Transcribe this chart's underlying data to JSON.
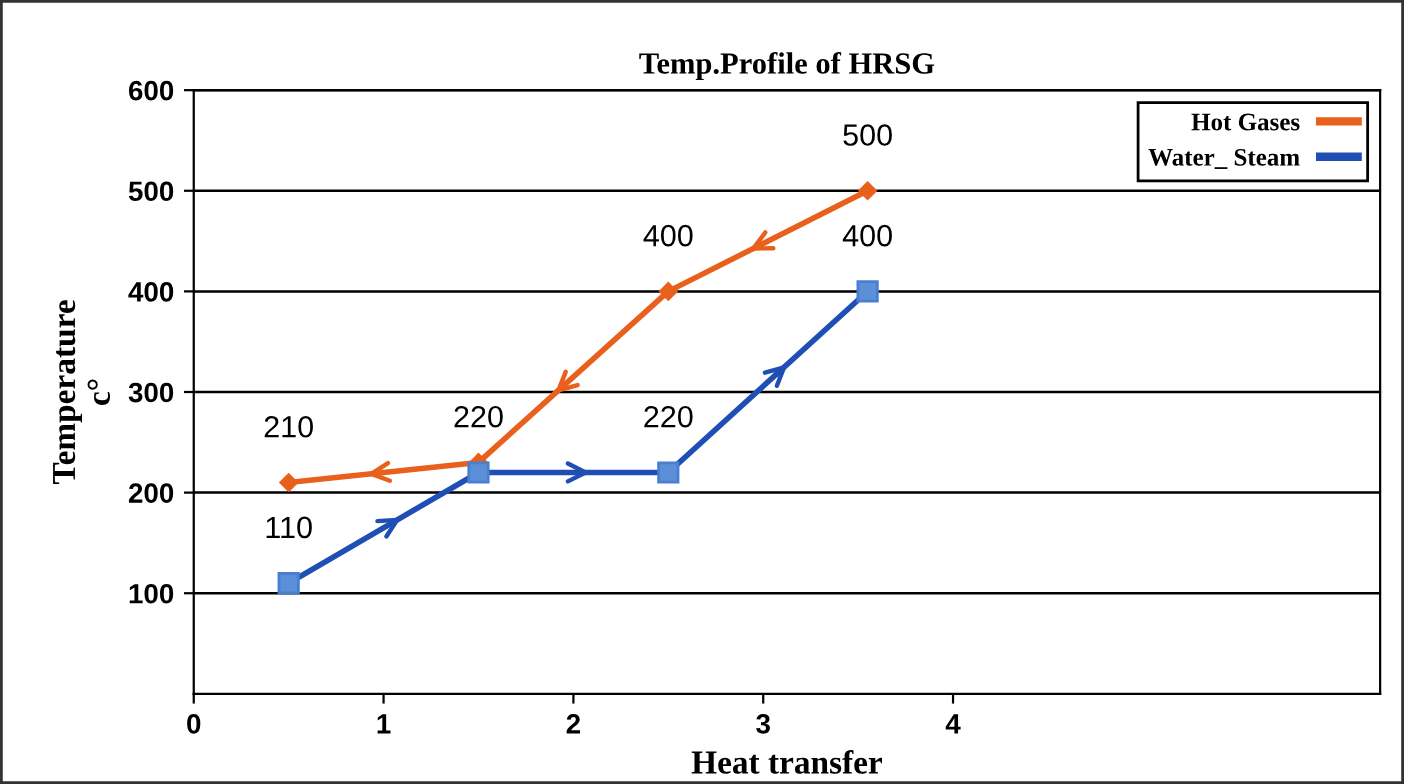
{
  "chart_data": {
    "type": "line",
    "title": "Temp.Profile of HRSG",
    "xlabel": "Heat transfer",
    "ylabel": "Temperature\nc°",
    "series": [
      {
        "name": "Hot Gases",
        "color": "#e8601c",
        "marker": "diamond",
        "x": [
          0.5,
          1.5,
          2.5,
          3.55
        ],
        "values": [
          210,
          230,
          400,
          500
        ],
        "value_labels": [
          "210",
          null,
          "400",
          "500"
        ]
      },
      {
        "name": "Water_ Steam",
        "color": "#1f4fb5",
        "marker": "square",
        "x": [
          0.5,
          1.5,
          2.5,
          3.55
        ],
        "values": [
          110,
          220,
          220,
          400
        ],
        "value_labels": [
          "110",
          "220",
          "220",
          "400"
        ]
      }
    ],
    "xlim": [
      0,
      6.25
    ],
    "xticks": [
      0,
      1,
      2,
      3,
      4
    ],
    "ylim": [
      0,
      600
    ],
    "yticks": [
      100,
      200,
      300,
      400,
      500,
      600
    ],
    "grid": "y",
    "legend": "top right"
  }
}
